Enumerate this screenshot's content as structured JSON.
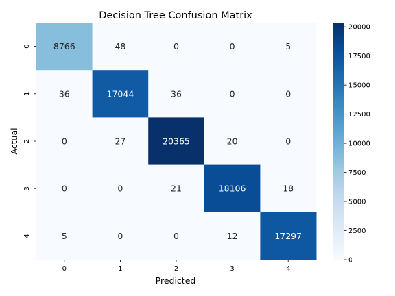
{
  "chart_data": {
    "type": "heatmap",
    "title": "Decision Tree Confusion Matrix",
    "xlabel": "Predicted",
    "ylabel": "Actual",
    "x_categories": [
      "0",
      "1",
      "2",
      "3",
      "4"
    ],
    "y_categories": [
      "0",
      "1",
      "2",
      "3",
      "4"
    ],
    "values": [
      [
        8766,
        48,
        0,
        0,
        5
      ],
      [
        36,
        17044,
        36,
        0,
        0
      ],
      [
        0,
        27,
        20365,
        20,
        0
      ],
      [
        0,
        0,
        21,
        18106,
        18
      ],
      [
        5,
        0,
        0,
        12,
        17297
      ]
    ],
    "colormap": "Blues",
    "colorbar": {
      "min": 0,
      "max": 20365,
      "ticks": [
        0,
        2500,
        5000,
        7500,
        10000,
        12500,
        15000,
        17500,
        20000
      ]
    },
    "grid": false,
    "legend": "colorbar-right"
  }
}
